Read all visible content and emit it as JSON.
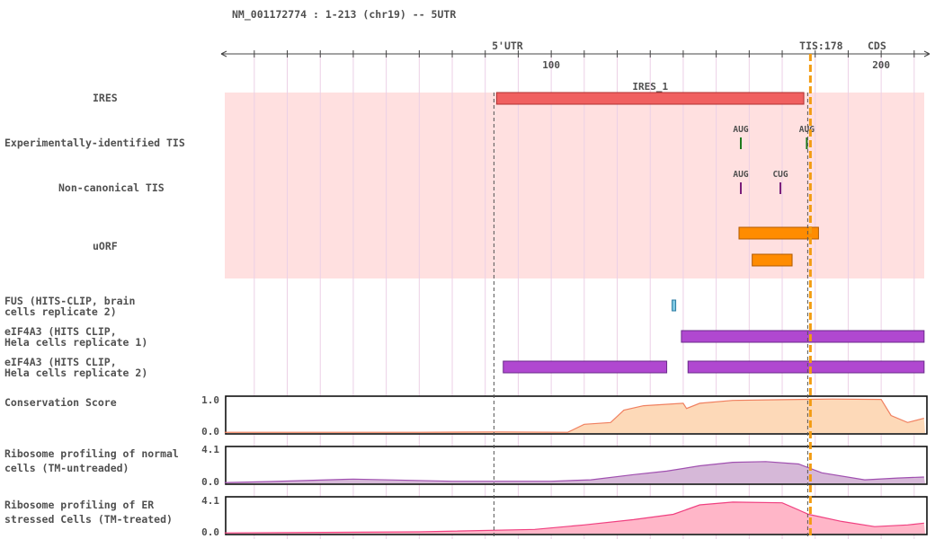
{
  "header": {
    "title": "NM_001172774 : 1-213 (chr19) -- 5UTR"
  },
  "axis": {
    "start": 1,
    "end": 213,
    "ticks": [
      {
        "pos": 100,
        "label": "100"
      },
      {
        "pos": 200,
        "label": "200"
      }
    ],
    "minor_step": 10
  },
  "markers": {
    "utr_label": "5'UTR",
    "utr_pos": 84,
    "utr_color": "#cc0000",
    "tis_label": "TIS:178",
    "tis_pos": 178,
    "tis_color": "#f39c12",
    "cds_label": "CDS",
    "cds_color": "#1e8b1e"
  },
  "tracks": {
    "ires": {
      "label": "IRES",
      "features": [
        {
          "name": "IRES_1",
          "start": 84,
          "end": 176,
          "color": "#f06060"
        }
      ]
    },
    "exp_tis": {
      "label": "Experimentally-identified TIS",
      "sites": [
        {
          "name": "AUG",
          "pos": 158
        },
        {
          "name": "AUG",
          "pos": 178
        }
      ],
      "color": "#1e7a1e"
    },
    "noncanonical_tis": {
      "label": "Non-canonical TIS",
      "sites": [
        {
          "name": "AUG",
          "pos": 158
        },
        {
          "name": "CUG",
          "pos": 170
        }
      ],
      "color": "#7a1e7a"
    },
    "uorf": {
      "label": "uORF",
      "features": [
        {
          "start": 158,
          "end": 181
        },
        {
          "start": 162,
          "end": 173
        }
      ],
      "color": "#ff8c00"
    },
    "fus": {
      "label_line1": "FUS (HITS-CLIP, brain",
      "label_line2": "cells replicate 2)",
      "features": [
        {
          "start": 138,
          "end": 139
        }
      ],
      "color": "#7ec8e3"
    },
    "eif4a3_1": {
      "label_line1": "eIF4A3 (HITS CLIP,",
      "label_line2": "Hela cells replicate 1)",
      "features": [
        {
          "start": 140,
          "end": 213
        }
      ],
      "color": "#b048d0"
    },
    "eif4a3_2": {
      "label_line1": "eIF4A3 (HITS CLIP,",
      "label_line2": "Hela cells replicate 2)",
      "features": [
        {
          "start": 86,
          "end": 135
        },
        {
          "start": 142,
          "end": 213
        }
      ],
      "color": "#b048d0"
    },
    "conservation": {
      "label": "Conservation Score",
      "ymax": "1.0",
      "ymin": "0.0",
      "values": [
        [
          1,
          0.02
        ],
        [
          60,
          0.02
        ],
        [
          84,
          0.03
        ],
        [
          105,
          0.02
        ],
        [
          110,
          0.25
        ],
        [
          118,
          0.3
        ],
        [
          122,
          0.65
        ],
        [
          128,
          0.78
        ],
        [
          140,
          0.85
        ],
        [
          141,
          0.7
        ],
        [
          145,
          0.85
        ],
        [
          155,
          0.93
        ],
        [
          170,
          0.95
        ],
        [
          185,
          0.97
        ],
        [
          200,
          0.96
        ],
        [
          203,
          0.5
        ],
        [
          208,
          0.3
        ],
        [
          213,
          0.42
        ]
      ],
      "fill": "#fdd9b8",
      "stroke": "#f08060"
    },
    "ribo_normal": {
      "label_line1": "Ribosome profiling of normal",
      "label_line2": "cells (TM-untreaded)",
      "ymax": "4.1",
      "ymin": "0.0",
      "values": [
        [
          1,
          0.02
        ],
        [
          15,
          0.05
        ],
        [
          40,
          0.12
        ],
        [
          70,
          0.06
        ],
        [
          100,
          0.06
        ],
        [
          112,
          0.1
        ],
        [
          125,
          0.25
        ],
        [
          135,
          0.35
        ],
        [
          145,
          0.5
        ],
        [
          155,
          0.6
        ],
        [
          165,
          0.62
        ],
        [
          175,
          0.55
        ],
        [
          182,
          0.3
        ],
        [
          195,
          0.1
        ],
        [
          205,
          0.15
        ],
        [
          213,
          0.18
        ]
      ],
      "fill": "#d6b8d8",
      "stroke": "#a050b0"
    },
    "ribo_er": {
      "label_line1": "Ribosome profiling of ER",
      "label_line2": "stressed Cells (TM-treated)",
      "ymax": "4.1",
      "ymin": "0.0",
      "values": [
        [
          1,
          0.02
        ],
        [
          60,
          0.05
        ],
        [
          95,
          0.12
        ],
        [
          110,
          0.25
        ],
        [
          125,
          0.4
        ],
        [
          137,
          0.55
        ],
        [
          145,
          0.82
        ],
        [
          155,
          0.9
        ],
        [
          170,
          0.88
        ],
        [
          178,
          0.55
        ],
        [
          188,
          0.35
        ],
        [
          198,
          0.2
        ],
        [
          208,
          0.25
        ],
        [
          213,
          0.3
        ]
      ],
      "fill": "#ffb6c8",
      "stroke": "#f04080"
    }
  }
}
